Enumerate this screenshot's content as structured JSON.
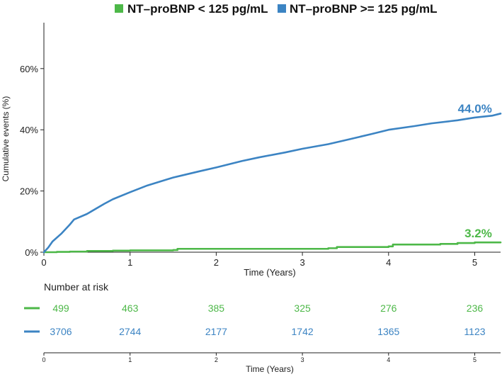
{
  "chart_data": [
    {
      "type": "line",
      "legend": {
        "placement": "top",
        "entries": [
          {
            "label": "NT–proBNP < 125 pg/mL",
            "color": "#4db848"
          },
          {
            "label": "NT–proBNP >= 125 pg/mL",
            "color": "#3c84c3"
          }
        ]
      },
      "xlabel": "Time (Years)",
      "ylabel": "Cumulative events (%)",
      "xlim": [
        0,
        5.3
      ],
      "ylim": [
        0,
        75
      ],
      "x_ticks": [
        0,
        1,
        2,
        3,
        4,
        5
      ],
      "y_ticks": [
        0,
        20,
        40,
        60
      ],
      "y_tick_labels": [
        "0%",
        "20%",
        "40%",
        "60%"
      ],
      "grid": false,
      "series": [
        {
          "name": "NT–proBNP < 125 pg/mL",
          "color": "#4db848",
          "step": true,
          "end_label": "3.2%",
          "points": [
            [
              0,
              0
            ],
            [
              0.15,
              0.1
            ],
            [
              0.3,
              0.2
            ],
            [
              0.5,
              0.4
            ],
            [
              0.8,
              0.5
            ],
            [
              1.0,
              0.6
            ],
            [
              1.5,
              0.7
            ],
            [
              1.55,
              1.1
            ],
            [
              3.0,
              1.1
            ],
            [
              3.3,
              1.3
            ],
            [
              3.4,
              1.7
            ],
            [
              4.0,
              1.9
            ],
            [
              4.05,
              2.5
            ],
            [
              4.6,
              2.7
            ],
            [
              4.8,
              3.0
            ],
            [
              5.0,
              3.2
            ],
            [
              5.3,
              3.2
            ]
          ]
        },
        {
          "name": "NT–proBNP >= 125 pg/mL",
          "color": "#3c84c3",
          "step": false,
          "end_label": "44.0%",
          "points": [
            [
              0,
              0
            ],
            [
              0.05,
              1.5
            ],
            [
              0.1,
              3.5
            ],
            [
              0.2,
              6
            ],
            [
              0.3,
              9
            ],
            [
              0.35,
              10.7
            ],
            [
              0.5,
              12.5
            ],
            [
              0.7,
              15.8
            ],
            [
              0.8,
              17.3
            ],
            [
              1.0,
              19.6
            ],
            [
              1.2,
              21.8
            ],
            [
              1.5,
              24.4
            ],
            [
              1.8,
              26.4
            ],
            [
              2.0,
              27.7
            ],
            [
              2.3,
              29.8
            ],
            [
              2.5,
              31.0
            ],
            [
              2.8,
              32.6
            ],
            [
              3.0,
              33.8
            ],
            [
              3.3,
              35.3
            ],
            [
              3.5,
              36.6
            ],
            [
              3.8,
              38.6
            ],
            [
              4.0,
              40.0
            ],
            [
              4.3,
              41.2
            ],
            [
              4.5,
              42.1
            ],
            [
              4.8,
              43.1
            ],
            [
              5.0,
              44.0
            ],
            [
              5.2,
              44.6
            ],
            [
              5.3,
              45.3
            ]
          ]
        }
      ]
    },
    {
      "type": "table",
      "title": "Number at risk",
      "xlabel": "Time (Years)",
      "x_ticks": [
        0,
        1,
        2,
        3,
        4,
        5
      ],
      "rows": [
        {
          "name": "NT–proBNP < 125 pg/mL",
          "color": "#4db848",
          "values": [
            "499",
            "463",
            "385",
            "325",
            "276",
            "236"
          ]
        },
        {
          "name": "NT–proBNP >= 125 pg/mL",
          "color": "#3c84c3",
          "values": [
            "3706",
            "2744",
            "2177",
            "1742",
            "1365",
            "1123"
          ]
        }
      ]
    }
  ]
}
